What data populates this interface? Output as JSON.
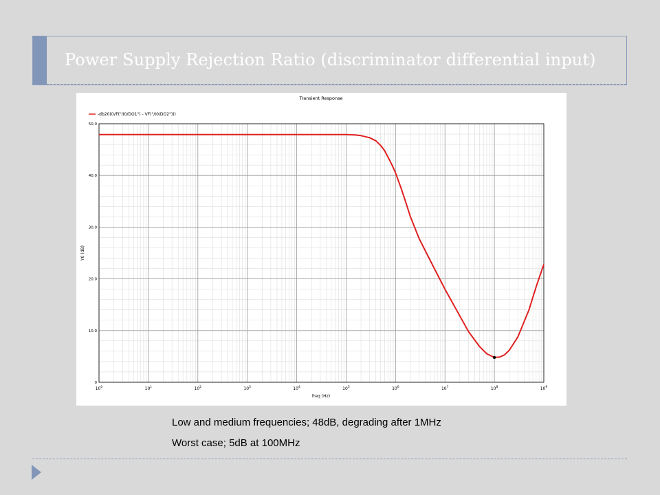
{
  "slide": {
    "title": "Power Supply Rejection Ratio (discriminator differential input)",
    "caption_line1": "Low and medium frequencies; 48dB, degrading after 1MHz",
    "caption_line2": "Worst case; 5dB at 100MHz"
  },
  "colors": {
    "background": "#d9d9d9",
    "accent": "#8196b8",
    "curve": "#e02020"
  },
  "chart_data": {
    "type": "line",
    "title": "Transient Response",
    "xlabel": "freq (Hz)",
    "ylabel": "Y0 (dB)",
    "xscale": "log",
    "xlim": [
      1,
      1000000000
    ],
    "ylim": [
      0,
      50
    ],
    "grid": true,
    "legend_position": "top-left",
    "x_ticks": [
      {
        "value": 1,
        "base": "10",
        "exp": "0"
      },
      {
        "value": 10,
        "base": "10",
        "exp": "1"
      },
      {
        "value": 100,
        "base": "10",
        "exp": "2"
      },
      {
        "value": 1000,
        "base": "10",
        "exp": "3"
      },
      {
        "value": 10000,
        "base": "10",
        "exp": "4"
      },
      {
        "value": 100000,
        "base": "10",
        "exp": "5"
      },
      {
        "value": 1000000,
        "base": "10",
        "exp": "6"
      },
      {
        "value": 10000000,
        "base": "10",
        "exp": "7"
      },
      {
        "value": 100000000,
        "base": "10",
        "exp": "8"
      },
      {
        "value": 1000000000,
        "base": "10",
        "exp": "9"
      }
    ],
    "y_ticks": [
      {
        "value": 0,
        "label": "0"
      },
      {
        "value": 10,
        "label": "10.0"
      },
      {
        "value": 20,
        "label": "20.0"
      },
      {
        "value": 30,
        "label": "30.0"
      },
      {
        "value": 40,
        "label": "40.0"
      },
      {
        "value": 50,
        "label": "50.0"
      }
    ],
    "series": [
      {
        "name": "-db20((VF(\"/I0/DO1\") - VF(\"/I0/DO2\")))",
        "x": [
          1,
          10,
          100,
          1000,
          10000,
          100000,
          150000,
          200000,
          300000,
          400000,
          500000,
          600000,
          700000,
          850000,
          1000000,
          1300000,
          1600000,
          2000000,
          3000000,
          5000000,
          10000000,
          20000000,
          30000000,
          50000000,
          70000000,
          100000000,
          130000000,
          160000000,
          200000000,
          300000000,
          500000000,
          700000000,
          1000000000
        ],
        "y": [
          47.9,
          47.9,
          47.9,
          47.9,
          47.9,
          47.9,
          47.85,
          47.7,
          47.3,
          46.7,
          45.8,
          44.8,
          43.6,
          42.0,
          40.5,
          37.5,
          34.9,
          32.0,
          27.8,
          23.6,
          18.0,
          12.8,
          9.8,
          6.9,
          5.5,
          4.8,
          4.9,
          5.3,
          6.2,
          8.8,
          14.0,
          18.5,
          22.8
        ]
      }
    ],
    "marker": {
      "x": 100000000,
      "y": 4.8
    }
  }
}
